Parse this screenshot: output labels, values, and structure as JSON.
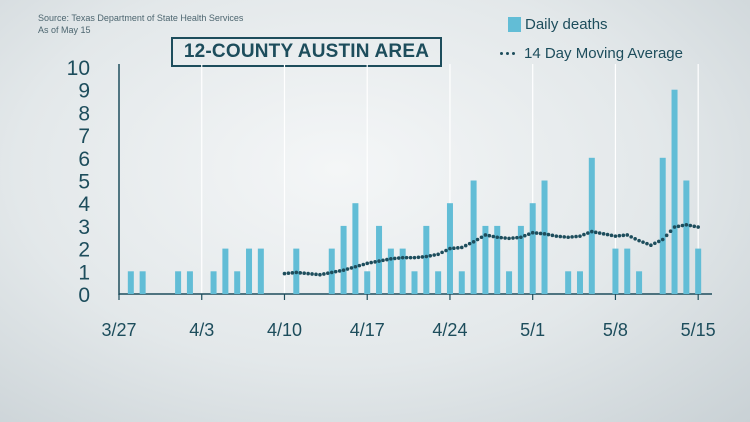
{
  "header": {
    "source_line": "Source: Texas Department of State Health Services",
    "date_line": "As of May 15",
    "title": "12-COUNTY AUSTIN AREA"
  },
  "legend": {
    "bars_label": "Daily deaths",
    "avg_label": "14 Day Moving Average"
  },
  "colors": {
    "bar": "#62bdd6",
    "average": "#1d4d5c",
    "text": "#1d4d5c",
    "grid": "#ffffff"
  },
  "chart_data": {
    "type": "bar",
    "title": "12-COUNTY AUSTIN AREA",
    "xlabel": "",
    "ylabel": "",
    "ylim": [
      0,
      10
    ],
    "yticks": [
      "0",
      "1",
      "2",
      "3",
      "4",
      "5",
      "6",
      "7",
      "8",
      "9",
      "10"
    ],
    "xticks": [
      "3/27",
      "4/3",
      "4/10",
      "4/17",
      "4/24",
      "5/1",
      "5/8",
      "5/15"
    ],
    "grid": "vertical",
    "legend_position": "top-right",
    "series": [
      {
        "name": "Daily deaths",
        "type": "bar",
        "x": [
          "3/28",
          "3/29",
          "3/30",
          "3/31",
          "4/1",
          "4/2",
          "4/3",
          "4/4",
          "4/5",
          "4/6",
          "4/7",
          "4/8",
          "4/9",
          "4/10",
          "4/11",
          "4/12",
          "4/13",
          "4/14",
          "4/15",
          "4/16",
          "4/17",
          "4/18",
          "4/19",
          "4/20",
          "4/21",
          "4/22",
          "4/23",
          "4/24",
          "4/25",
          "4/26",
          "4/27",
          "4/28",
          "4/29",
          "4/30",
          "5/1",
          "5/2",
          "5/3",
          "5/4",
          "5/5",
          "5/6",
          "5/7",
          "5/8",
          "5/9",
          "5/10",
          "5/11",
          "5/12",
          "5/13",
          "5/14",
          "5/15"
        ],
        "values": [
          1,
          1,
          0,
          0,
          1,
          1,
          0,
          1,
          2,
          1,
          2,
          2,
          0,
          0,
          2,
          0,
          0,
          2,
          3,
          4,
          1,
          3,
          2,
          2,
          1,
          3,
          1,
          4,
          1,
          5,
          3,
          3,
          1,
          3,
          4,
          5,
          0,
          1,
          1,
          6,
          0,
          2,
          2,
          1,
          0,
          6,
          9,
          5,
          2
        ]
      },
      {
        "name": "14 Day Moving Average",
        "type": "line",
        "x": [
          "4/10",
          "4/11",
          "4/12",
          "4/13",
          "4/14",
          "4/15",
          "4/16",
          "4/17",
          "4/18",
          "4/19",
          "4/20",
          "4/21",
          "4/22",
          "4/23",
          "4/24",
          "4/25",
          "4/26",
          "4/27",
          "4/28",
          "4/29",
          "4/30",
          "5/1",
          "5/2",
          "5/3",
          "5/4",
          "5/5",
          "5/6",
          "5/7",
          "5/8",
          "5/9",
          "5/10",
          "5/11",
          "5/12",
          "5/13",
          "5/14",
          "5/15"
        ],
        "values": [
          0.9,
          0.95,
          0.9,
          0.85,
          0.95,
          1.05,
          1.2,
          1.35,
          1.45,
          1.55,
          1.6,
          1.6,
          1.65,
          1.75,
          2.0,
          2.05,
          2.3,
          2.6,
          2.5,
          2.45,
          2.5,
          2.7,
          2.65,
          2.55,
          2.5,
          2.55,
          2.75,
          2.65,
          2.55,
          2.6,
          2.35,
          2.15,
          2.4,
          2.95,
          3.05,
          2.95
        ]
      }
    ]
  }
}
